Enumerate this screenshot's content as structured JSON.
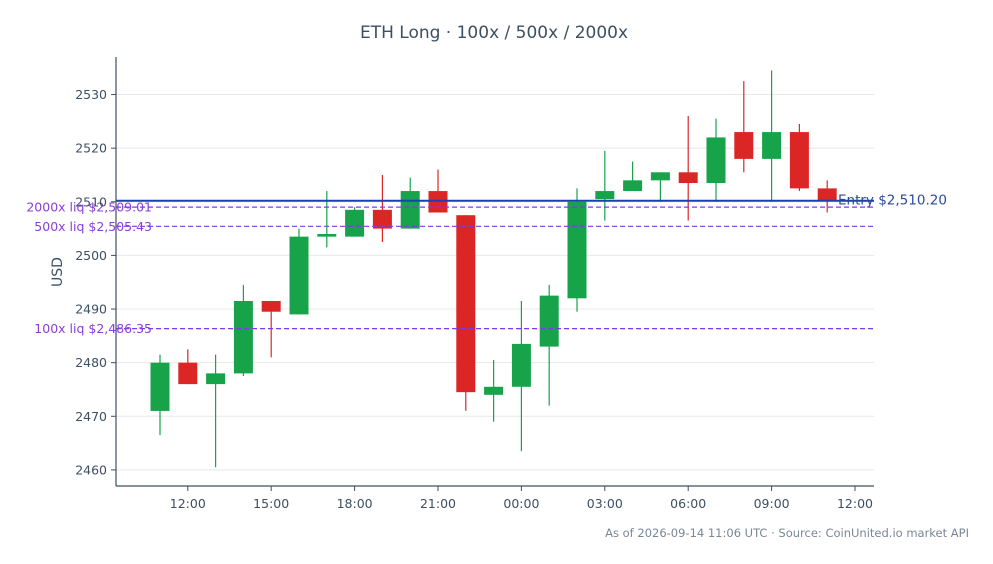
{
  "title": "ETH Long · 100x / 500x / 2000x",
  "footer": "As of 2026-09-14 11:06 UTC · Source: CoinUnited.io market API",
  "colors": {
    "up": "#16a34a",
    "down": "#dc2626",
    "entry": "#1e40af",
    "liq": "#7c3aed",
    "axis": "#3d4f63",
    "grid": "#e8e8e8"
  },
  "chart_data": {
    "type": "candlestick",
    "ylabel": "USD",
    "ylim": [
      2457,
      2537
    ],
    "yticks": [
      2460,
      2470,
      2480,
      2490,
      2500,
      2510,
      2520,
      2530
    ],
    "xlim": [
      "10:00",
      "12:30 (next day)"
    ],
    "xticks": [
      "12:00",
      "15:00",
      "18:00",
      "21:00",
      "00:00",
      "03:00",
      "06:00",
      "09:00",
      "12:00"
    ],
    "grid": "horizontal",
    "candles": [
      {
        "time": "11:00",
        "open": 2471,
        "high": 2481.5,
        "low": 2466.5,
        "close": 2480
      },
      {
        "time": "12:00",
        "open": 2480,
        "high": 2482.5,
        "low": 2476,
        "close": 2476
      },
      {
        "time": "13:00",
        "open": 2476,
        "high": 2481.5,
        "low": 2460.5,
        "close": 2478
      },
      {
        "time": "14:00",
        "open": 2478,
        "high": 2494.5,
        "low": 2477.5,
        "close": 2491.5
      },
      {
        "time": "15:00",
        "open": 2491.5,
        "high": 2491.5,
        "low": 2481,
        "close": 2489.5
      },
      {
        "time": "16:00",
        "open": 2489,
        "high": 2505,
        "low": 2489,
        "close": 2503.5
      },
      {
        "time": "17:00",
        "open": 2503.5,
        "high": 2512,
        "low": 2501.5,
        "close": 2504
      },
      {
        "time": "18:00",
        "open": 2503.5,
        "high": 2509,
        "low": 2503.5,
        "close": 2508.5
      },
      {
        "time": "19:00",
        "open": 2508.5,
        "high": 2515,
        "low": 2502.5,
        "close": 2505
      },
      {
        "time": "20:00",
        "open": 2505,
        "high": 2514.5,
        "low": 2505,
        "close": 2512
      },
      {
        "time": "21:00",
        "open": 2512,
        "high": 2516,
        "low": 2508,
        "close": 2508
      },
      {
        "time": "22:00",
        "open": 2507.5,
        "high": 2507.5,
        "low": 2471,
        "close": 2474.5
      },
      {
        "time": "23:00",
        "open": 2474,
        "high": 2480.5,
        "low": 2469,
        "close": 2475.5
      },
      {
        "time": "00:00",
        "open": 2475.5,
        "high": 2491.5,
        "low": 2463.5,
        "close": 2483.5
      },
      {
        "time": "01:00",
        "open": 2483,
        "high": 2494.5,
        "low": 2472,
        "close": 2492.5
      },
      {
        "time": "02:00",
        "open": 2492,
        "high": 2512.5,
        "low": 2489.5,
        "close": 2510
      },
      {
        "time": "03:00",
        "open": 2510.5,
        "high": 2519.5,
        "low": 2506.5,
        "close": 2512
      },
      {
        "time": "04:00",
        "open": 2512,
        "high": 2517.5,
        "low": 2512,
        "close": 2514
      },
      {
        "time": "05:00",
        "open": 2514,
        "high": 2515.5,
        "low": 2510,
        "close": 2515.5
      },
      {
        "time": "06:00",
        "open": 2515.5,
        "high": 2526,
        "low": 2506.5,
        "close": 2513.5
      },
      {
        "time": "07:00",
        "open": 2513.5,
        "high": 2525.5,
        "low": 2510,
        "close": 2522
      },
      {
        "time": "08:00",
        "open": 2523,
        "high": 2532.5,
        "low": 2515.5,
        "close": 2518
      },
      {
        "time": "09:00",
        "open": 2518,
        "high": 2534.5,
        "low": 2510,
        "close": 2523
      },
      {
        "time": "10:00",
        "open": 2523,
        "high": 2524.5,
        "low": 2512,
        "close": 2512.5
      },
      {
        "time": "11:00",
        "open": 2512.5,
        "high": 2514,
        "low": 2508,
        "close": 2510.2
      }
    ],
    "lines": [
      {
        "name": "entry",
        "value": 2510.2,
        "label": "Entry $2,510.20",
        "style": "solid"
      },
      {
        "name": "liq-2000x",
        "value": 2509.01,
        "label": "2000x liq $2,509.01",
        "style": "dashed"
      },
      {
        "name": "liq-500x",
        "value": 2505.43,
        "label": "500x liq $2,505.43",
        "style": "dashed"
      },
      {
        "name": "liq-100x",
        "value": 2486.35,
        "label": "100x liq $2,486.35",
        "style": "dashed"
      }
    ]
  }
}
